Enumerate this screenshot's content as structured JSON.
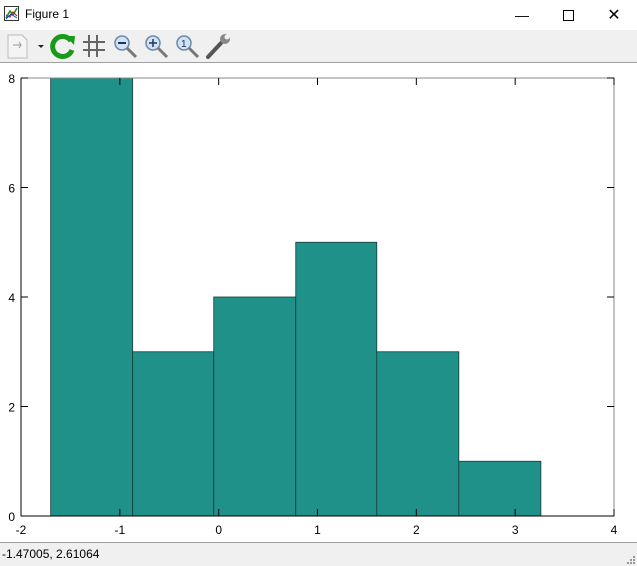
{
  "window": {
    "title": "Figure 1",
    "minimize_icon": "minimize-icon",
    "maximize_icon": "maximize-icon",
    "close_icon": "close-icon"
  },
  "toolbar": {
    "items": [
      "export-icon",
      "replot-icon",
      "grid-icon",
      "zoom-out-icon",
      "zoom-in-icon",
      "zoom-reset-icon",
      "settings-wrench-icon"
    ]
  },
  "status": {
    "coords": "-1.47005,  2.61064"
  },
  "colors": {
    "bar": "#1f9189",
    "bar_edge": "#1a3a38"
  },
  "chart_data": {
    "type": "bar",
    "subtype": "histogram",
    "bin_edges": [
      -1.7,
      -0.87,
      -0.05,
      0.78,
      1.6,
      2.43,
      3.26
    ],
    "values": [
      8,
      3,
      4,
      5,
      3,
      1
    ],
    "xlim": [
      -2,
      4
    ],
    "ylim": [
      0,
      8
    ],
    "xticks": [
      "-2",
      "-1",
      "0",
      "1",
      "2",
      "3",
      "4"
    ],
    "yticks": [
      "0",
      "2",
      "4",
      "6",
      "8"
    ],
    "grid": false,
    "title": "",
    "xlabel": "",
    "ylabel": ""
  }
}
